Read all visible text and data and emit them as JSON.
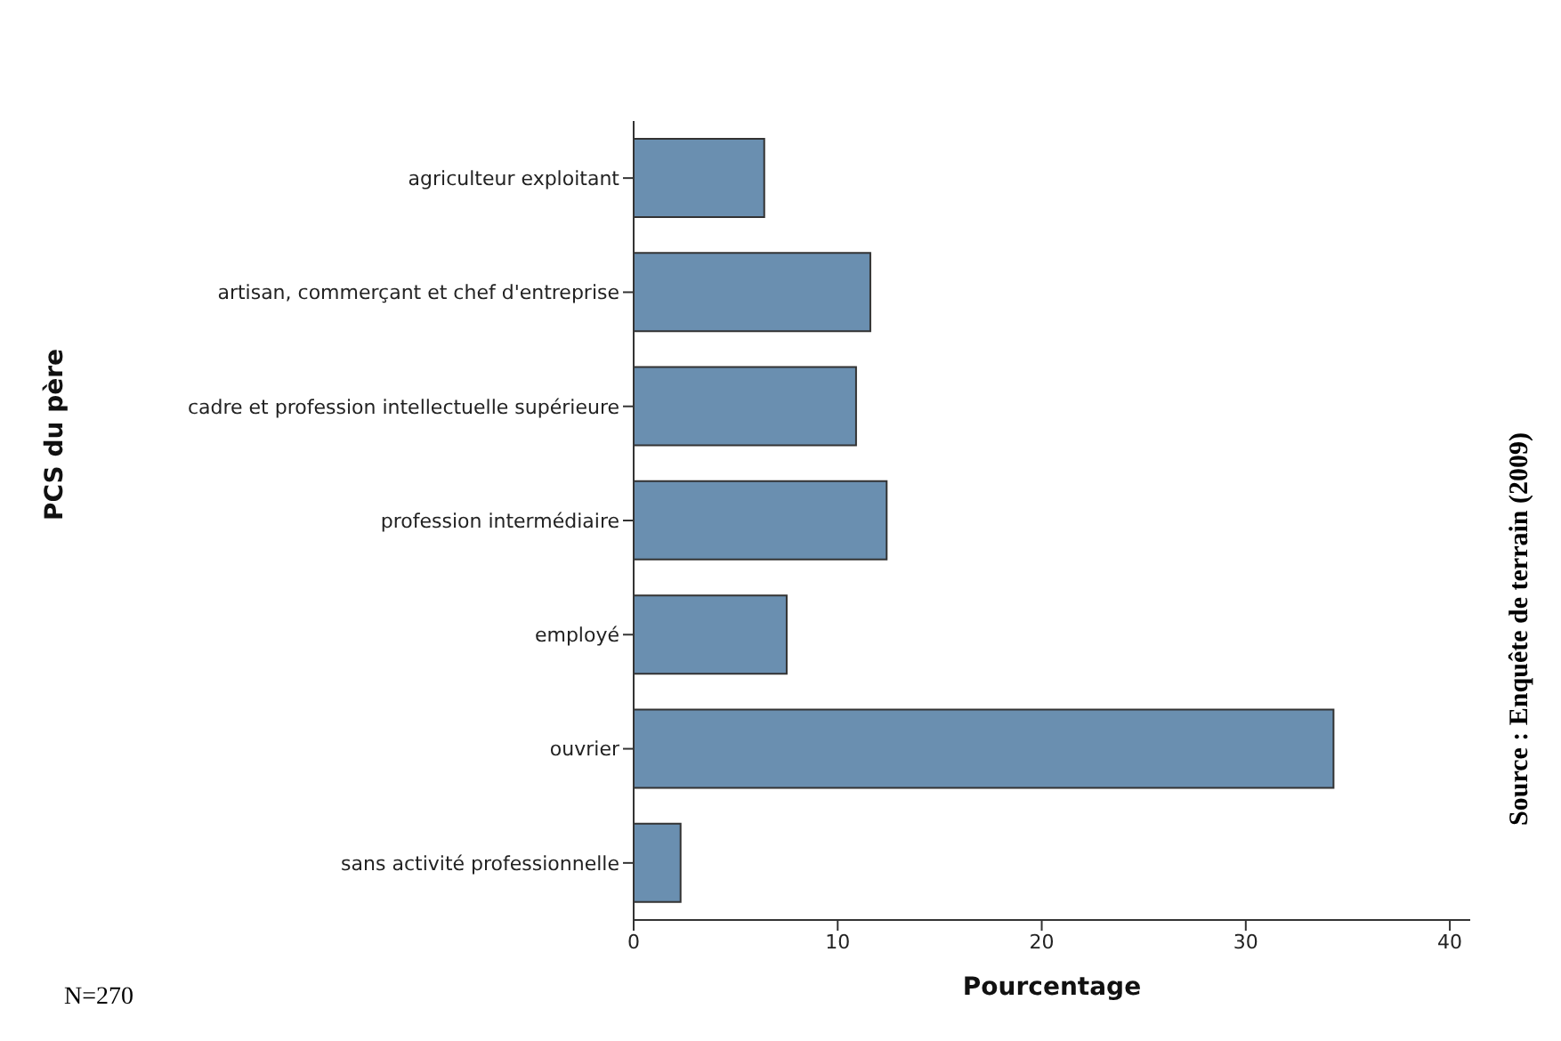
{
  "chart_data": {
    "type": "bar",
    "orientation": "horizontal",
    "xlabel": "Pourcentage",
    "ylabel": "PCS du père",
    "categories": [
      "agriculteur exploitant",
      "artisan, commerçant et chef d'entreprise",
      "cadre et profession intellectuelle supérieure",
      "profession intermédiaire",
      "employé",
      "ouvrier",
      "sans activité professionnelle"
    ],
    "values": [
      6.4,
      11.6,
      10.9,
      12.4,
      7.5,
      34.3,
      2.3
    ],
    "color": "#6a8fb0",
    "xlim": [
      0,
      41
    ],
    "xticks": [
      0,
      10,
      20,
      30,
      40
    ],
    "annotations": [
      "N=270",
      "Source : Enquête de terrain (2009)"
    ]
  }
}
